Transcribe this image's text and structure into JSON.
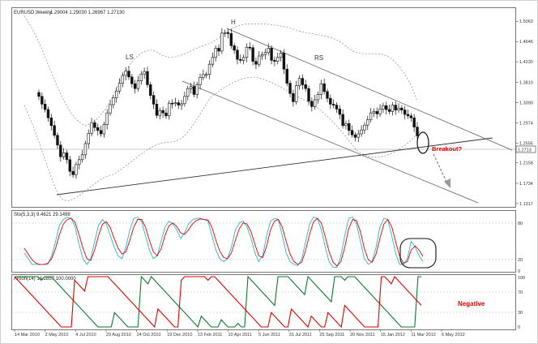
{
  "chart_data": [
    {
      "type": "candlestick",
      "title": "EURUSD,Weekly",
      "ohlc_header": "1.29004 1.29030 1.26967 1.27130",
      "last_price": "1.2713",
      "ylim": [
        1.13,
        1.53
      ],
      "y_ticks": [
        "1.5063",
        "1.4646",
        "1.4230",
        "1.3810",
        "1.3390",
        "1.2974",
        "1.2556",
        "1.2158",
        "1.1734",
        "1.1317"
      ],
      "x_ticks": [
        "14 Mar 2010",
        "2 May 2010",
        "4 Jul 2010",
        "29 Aug 2010",
        "24 Oct 2010",
        "19 Dec 2010",
        "13 Feb 2011",
        "10 Apr 2011",
        "5 Jun 2011",
        "31 Jul 2011",
        "25 Sep 2011",
        "20 Nov 2011",
        "15 Jan 2012",
        "11 Mar 2012",
        "6 May 2012"
      ],
      "closes": [
        1.352,
        1.336,
        1.325,
        1.308,
        1.292,
        1.272,
        1.252,
        1.228,
        1.236,
        1.222,
        1.198,
        1.191,
        1.212,
        1.222,
        1.232,
        1.255,
        1.276,
        1.298,
        1.288,
        1.282,
        1.275,
        1.294,
        1.318,
        1.335,
        1.349,
        1.363,
        1.379,
        1.395,
        1.404,
        1.392,
        1.378,
        1.368,
        1.384,
        1.398,
        1.403,
        1.376,
        1.354,
        1.336,
        1.313,
        1.323,
        1.318,
        1.312,
        1.338,
        1.337,
        1.339,
        1.334,
        1.337,
        1.352,
        1.368,
        1.372,
        1.356,
        1.376,
        1.391,
        1.397,
        1.397,
        1.418,
        1.432,
        1.451,
        1.445,
        1.482,
        1.483,
        1.481,
        1.456,
        1.447,
        1.428,
        1.426,
        1.432,
        1.453,
        1.452,
        1.424,
        1.418,
        1.435,
        1.438,
        1.442,
        1.451,
        1.426,
        1.424,
        1.432,
        1.441,
        1.408,
        1.379,
        1.358,
        1.341,
        1.374,
        1.389,
        1.376,
        1.368,
        1.342,
        1.331,
        1.345,
        1.356,
        1.378,
        1.362,
        1.348,
        1.336,
        1.334,
        1.326,
        1.315,
        1.292,
        1.296,
        1.282,
        1.273,
        1.268,
        1.275,
        1.283,
        1.293,
        1.304,
        1.318,
        1.321,
        1.316,
        1.326,
        1.333,
        1.325,
        1.321,
        1.334,
        1.324,
        1.328,
        1.324,
        1.315,
        1.312,
        1.308,
        1.289,
        1.271
      ],
      "annotations": [
        "H",
        "LS",
        "RS",
        "Breakout?"
      ]
    },
    {
      "type": "line",
      "title": "Sto(5,3,3) 9.4621 29.1498",
      "ylim": [
        0,
        100
      ],
      "y_ticks": [
        "80",
        "20",
        "0"
      ],
      "series": [
        {
          "color": "#2ab7c8",
          "values": [
            30,
            20,
            10,
            10,
            10,
            10,
            10,
            25,
            50,
            78,
            88,
            92,
            90,
            75,
            45,
            20,
            10,
            20,
            50,
            78,
            88,
            80,
            60,
            40,
            25,
            20,
            40,
            70,
            90,
            92,
            85,
            60,
            35,
            20,
            25,
            50,
            75,
            85,
            80,
            70,
            55,
            65,
            80,
            87,
            90,
            90,
            88,
            85,
            60,
            35,
            20,
            15,
            20,
            40,
            70,
            82,
            85,
            75,
            55,
            30,
            15,
            25,
            60,
            85,
            90,
            88,
            60,
            30,
            15,
            10,
            8,
            20,
            50,
            80,
            92,
            90,
            70,
            40,
            15,
            5,
            5,
            25,
            60,
            90,
            92,
            80,
            50,
            20,
            10,
            15,
            40,
            75,
            90,
            88,
            60,
            30,
            10,
            10,
            20,
            50,
            40,
            25,
            15
          ]
        },
        {
          "color": "#e00000",
          "values": [
            38,
            28,
            18,
            12,
            10,
            10,
            12,
            20,
            38,
            62,
            80,
            88,
            90,
            83,
            62,
            38,
            20,
            17,
            35,
            60,
            80,
            84,
            74,
            55,
            38,
            28,
            32,
            52,
            75,
            88,
            88,
            75,
            52,
            32,
            25,
            37,
            60,
            77,
            82,
            76,
            65,
            62,
            70,
            80,
            86,
            89,
            88,
            87,
            75,
            52,
            33,
            22,
            20,
            30,
            52,
            72,
            82,
            80,
            67,
            45,
            25,
            22,
            42,
            70,
            85,
            88,
            75,
            50,
            28,
            15,
            10,
            14,
            35,
            62,
            84,
            90,
            82,
            58,
            32,
            14,
            7,
            15,
            40,
            72,
            88,
            86,
            67,
            38,
            18,
            14,
            28,
            55,
            80,
            88,
            76,
            50,
            25,
            12,
            15,
            35,
            42,
            35,
            24
          ]
        }
      ]
    },
    {
      "type": "line",
      "title": "Aroon(14) 14.2857 100.0000",
      "ylim": [
        0,
        100
      ],
      "y_ticks": [
        "100",
        "70",
        "30",
        "0"
      ],
      "series": [
        {
          "name": "Negative",
          "color": "#e00000"
        },
        {
          "color": "#0a7a2a"
        }
      ]
    }
  ],
  "annotation_text": {
    "head": "H",
    "left_shoulder": "LS",
    "right_shoulder": "RS",
    "breakout": "Breakout?",
    "negative": "Negative"
  }
}
